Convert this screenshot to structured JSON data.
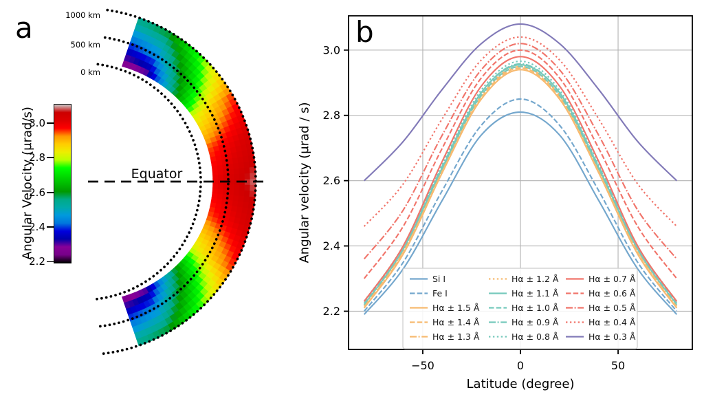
{
  "figure": {
    "panel_a_label": "a",
    "panel_b_label": "b",
    "background": "#ffffff"
  },
  "panel_a": {
    "type": "polar-heatmap-wedge",
    "equator_label": "Equator",
    "height_labels": [
      "1000 km",
      "500 km",
      "0 km"
    ],
    "colorbar": {
      "label": "Angular Velocity (μrad/s)",
      "tick_values": [
        3.0,
        2.8,
        2.6,
        2.4,
        2.2
      ],
      "tick_labels": [
        "3.0",
        "2.8",
        "2.6",
        "2.4",
        "2.2"
      ],
      "vmin": 2.19,
      "vmax": 3.11,
      "colormap_name": "nipy-spectral",
      "colormap_stops": [
        [
          0.0,
          "#000000"
        ],
        [
          0.05,
          "#770088"
        ],
        [
          0.1,
          "#880099"
        ],
        [
          0.15,
          "#0000aa"
        ],
        [
          0.2,
          "#0000dd"
        ],
        [
          0.25,
          "#0077dd"
        ],
        [
          0.3,
          "#0099dd"
        ],
        [
          0.35,
          "#00aaaa"
        ],
        [
          0.4,
          "#00aa88"
        ],
        [
          0.45,
          "#009900"
        ],
        [
          0.5,
          "#00bb00"
        ],
        [
          0.55,
          "#00dd00"
        ],
        [
          0.6,
          "#00ff00"
        ],
        [
          0.65,
          "#bbff00"
        ],
        [
          0.7,
          "#eeee00"
        ],
        [
          0.75,
          "#ffcc00"
        ],
        [
          0.8,
          "#ff9900"
        ],
        [
          0.85,
          "#ff0000"
        ],
        [
          0.9,
          "#dd0000"
        ],
        [
          0.95,
          "#cc0000"
        ],
        [
          1.0,
          "#cccccc"
        ]
      ]
    },
    "grid": {
      "latitudes_deg": [
        0,
        15,
        30,
        45,
        60,
        75
      ],
      "heights_km": [
        0,
        500,
        1000
      ],
      "omega_urad_s": [
        [
          2.97,
          3.03,
          3.09
        ],
        [
          2.92,
          2.98,
          3.04
        ],
        [
          2.78,
          2.87,
          2.96
        ],
        [
          2.52,
          2.64,
          2.78
        ],
        [
          2.24,
          2.44,
          2.6
        ],
        [
          2.21,
          2.38,
          2.55
        ]
      ],
      "symmetric_about_equator": true
    }
  },
  "chart_data": {
    "type": "line",
    "title": "",
    "xlabel": "Latitude (degree)",
    "ylabel": "Angular velocity (μrad / s)",
    "xlim": [
      -88,
      88
    ],
    "ylim": [
      2.083,
      3.105
    ],
    "xtick_values": [
      -50,
      0,
      50
    ],
    "xtick_labels": [
      "−50",
      "0",
      "50"
    ],
    "ytick_values": [
      2.2,
      2.4,
      2.6,
      2.8,
      3.0
    ],
    "ytick_labels": [
      "2.2",
      "2.4",
      "2.6",
      "2.8",
      "3.0"
    ],
    "grid": true,
    "grid_color": "#b2b2b2",
    "axis_color": "#000000",
    "x": [
      -80,
      -60,
      -40,
      -20,
      0,
      20,
      40,
      60,
      80
    ],
    "series": [
      {
        "name": "Si I",
        "color": "#74a7cd",
        "style": "solid",
        "values": [
          2.19,
          2.33,
          2.54,
          2.74,
          2.81,
          2.74,
          2.54,
          2.33,
          2.19
        ]
      },
      {
        "name": "Fe I",
        "color": "#74a7cd",
        "style": "dashed",
        "values": [
          2.2,
          2.35,
          2.57,
          2.77,
          2.85,
          2.77,
          2.57,
          2.35,
          2.2
        ]
      },
      {
        "name": "Hα ± 1.5 Å",
        "color": "#f7ba70",
        "style": "solid",
        "values": [
          2.21,
          2.375,
          2.625,
          2.85,
          2.94,
          2.85,
          2.625,
          2.375,
          2.21
        ]
      },
      {
        "name": "Hα ± 1.4 Å",
        "color": "#f7ba70",
        "style": "dashed",
        "values": [
          2.21,
          2.38,
          2.63,
          2.855,
          2.945,
          2.855,
          2.63,
          2.38,
          2.21
        ]
      },
      {
        "name": "Hα ± 1.3 Å",
        "color": "#f7ba70",
        "style": "dashdot",
        "values": [
          2.215,
          2.385,
          2.635,
          2.86,
          2.95,
          2.86,
          2.635,
          2.385,
          2.215
        ]
      },
      {
        "name": "Hα ± 1.2 Å",
        "color": "#f7ba70",
        "style": "dotted",
        "values": [
          2.22,
          2.39,
          2.64,
          2.865,
          2.955,
          2.865,
          2.64,
          2.39,
          2.22
        ]
      },
      {
        "name": "Hα ± 1.1 Å",
        "color": "#76c9bc",
        "style": "solid",
        "values": [
          2.22,
          2.39,
          2.64,
          2.87,
          2.955,
          2.87,
          2.64,
          2.39,
          2.22
        ]
      },
      {
        "name": "Hα ± 1.0 Å",
        "color": "#76c9bc",
        "style": "dashed",
        "values": [
          2.225,
          2.392,
          2.638,
          2.862,
          2.95,
          2.862,
          2.638,
          2.392,
          2.225
        ]
      },
      {
        "name": "Hα ± 0.9 Å",
        "color": "#76c9bc",
        "style": "dashdot",
        "values": [
          2.23,
          2.398,
          2.645,
          2.87,
          2.958,
          2.87,
          2.645,
          2.398,
          2.23
        ]
      },
      {
        "name": "Hα ± 0.8 Å",
        "color": "#76c9bc",
        "style": "dotted",
        "values": [
          2.23,
          2.4,
          2.652,
          2.878,
          2.966,
          2.878,
          2.652,
          2.4,
          2.23
        ]
      },
      {
        "name": "Hα ± 0.7 Å",
        "color": "#f1756b",
        "style": "solid",
        "values": [
          2.23,
          2.4,
          2.66,
          2.89,
          2.98,
          2.89,
          2.66,
          2.4,
          2.23
        ]
      },
      {
        "name": "Hα ± 0.6 Å",
        "color": "#f1756b",
        "style": "dashed",
        "values": [
          2.3,
          2.46,
          2.7,
          2.915,
          3.0,
          2.915,
          2.7,
          2.46,
          2.3
        ]
      },
      {
        "name": "Hα ± 0.5 Å",
        "color": "#f1756b",
        "style": "dashdot",
        "values": [
          2.36,
          2.51,
          2.74,
          2.94,
          3.02,
          2.94,
          2.74,
          2.51,
          2.36
        ]
      },
      {
        "name": "Hα ± 0.4 Å",
        "color": "#f1756b",
        "style": "dotted",
        "values": [
          2.46,
          2.59,
          2.79,
          2.97,
          3.04,
          2.97,
          2.79,
          2.59,
          2.46
        ]
      },
      {
        "name": "Hα ± 0.3 Å",
        "color": "#827ab8",
        "style": "solid",
        "values": [
          2.6,
          2.72,
          2.88,
          3.02,
          3.08,
          3.02,
          2.88,
          2.72,
          2.6
        ]
      }
    ],
    "legend": {
      "columns": 3,
      "order": "column-major",
      "frame_color": "#cccccc"
    }
  }
}
